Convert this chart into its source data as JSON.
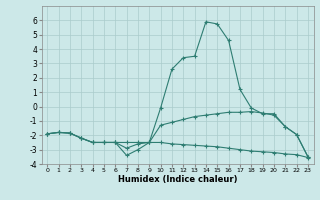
{
  "xlabel": "Humidex (Indice chaleur)",
  "x": [
    0,
    1,
    2,
    3,
    4,
    5,
    6,
    7,
    8,
    9,
    10,
    11,
    12,
    13,
    14,
    15,
    16,
    17,
    18,
    19,
    20,
    21,
    22,
    23
  ],
  "line1": [
    -1.9,
    -1.8,
    -1.85,
    -2.2,
    -2.5,
    -2.5,
    -2.5,
    -2.9,
    -2.6,
    -2.5,
    -1.3,
    -1.1,
    -0.9,
    -0.7,
    -0.6,
    -0.5,
    -0.4,
    -0.4,
    -0.35,
    -0.45,
    -0.6,
    -1.4,
    -1.95,
    -3.5
  ],
  "line2": [
    -1.9,
    -1.8,
    -1.85,
    -2.2,
    -2.5,
    -2.5,
    -2.5,
    -3.4,
    -3.0,
    -2.5,
    -0.1,
    2.6,
    3.4,
    3.5,
    5.9,
    5.75,
    4.6,
    1.2,
    -0.1,
    -0.5,
    -0.5,
    -1.4,
    -1.95,
    -3.5
  ],
  "line3": [
    -1.9,
    -1.8,
    -1.85,
    -2.2,
    -2.5,
    -2.5,
    -2.5,
    -2.5,
    -2.5,
    -2.5,
    -2.5,
    -2.6,
    -2.65,
    -2.7,
    -2.75,
    -2.8,
    -2.9,
    -3.0,
    -3.1,
    -3.15,
    -3.2,
    -3.3,
    -3.35,
    -3.55
  ],
  "line_color": "#2E7D72",
  "bg_color": "#cce8e8",
  "grid_color": "#aacccc",
  "ylim": [
    -4,
    7
  ],
  "xlim": [
    -0.5,
    23.5
  ],
  "yticks": [
    -4,
    -3,
    -2,
    -1,
    0,
    1,
    2,
    3,
    4,
    5,
    6
  ],
  "xticks": [
    0,
    1,
    2,
    3,
    4,
    5,
    6,
    7,
    8,
    9,
    10,
    11,
    12,
    13,
    14,
    15,
    16,
    17,
    18,
    19,
    20,
    21,
    22,
    23
  ]
}
